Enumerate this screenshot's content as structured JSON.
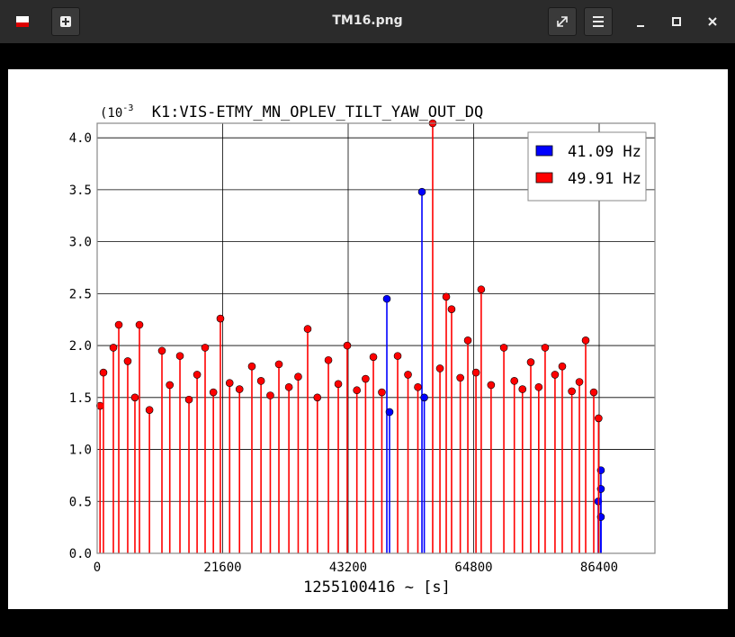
{
  "window": {
    "title": "TM16.png"
  },
  "chart_data": {
    "type": "stem",
    "title": "K1:VIS-ETMY_MN_OPLEV_TILT_YAW_OUT_DQ",
    "y_multiplier": {
      "base": "(10",
      "exponent": "-3"
    },
    "xlabel": "1255100416 ~ [s]",
    "xlim": [
      0,
      96000
    ],
    "xticks": [
      0,
      21600,
      43200,
      64800,
      86400
    ],
    "ylim": [
      0,
      4.14
    ],
    "yticks": [
      {
        "value": 0,
        "label": "0.0"
      },
      0.5,
      {
        "value": 1,
        "label": "1.0"
      },
      1.5,
      {
        "value": 2,
        "label": "2.0"
      },
      2.5,
      {
        "value": 3,
        "label": "3.0"
      },
      3.5,
      {
        "value": 4,
        "label": "4.0"
      }
    ],
    "grid": true,
    "legend": "upper right",
    "series": [
      {
        "name": "41.09 Hz",
        "color": "#0000ff",
        "x": [
          49860,
          50320,
          55900,
          56300,
          86240,
          86700,
          86700,
          86700
        ],
        "values": [
          2.45,
          1.36,
          3.48,
          1.5,
          0.5,
          0.8,
          0.62,
          0.35
        ]
      },
      {
        "name": "49.91 Hz",
        "color": "#ff0000",
        "x": [
          500,
          1080,
          2790,
          3720,
          5260,
          6500,
          7280,
          9000,
          11150,
          12500,
          14250,
          15800,
          17200,
          18580,
          20000,
          21210,
          22800,
          24500,
          26630,
          28200,
          29800,
          31280,
          33000,
          34600,
          36230,
          37900,
          39800,
          41500,
          43040,
          44700,
          46200,
          47540,
          49000,
          51720,
          53500,
          55200,
          57750,
          59000,
          60080,
          61000,
          62500,
          63800,
          65200,
          66100,
          67800,
          70000,
          71800,
          73200,
          74630,
          76000,
          77100,
          78800,
          80050,
          81700,
          83000,
          84080,
          85470,
          86300
        ],
        "values": [
          1.42,
          1.74,
          1.98,
          2.2,
          1.85,
          1.5,
          2.2,
          1.38,
          1.95,
          1.62,
          1.9,
          1.48,
          1.72,
          1.98,
          1.55,
          2.26,
          1.64,
          1.58,
          1.8,
          1.66,
          1.52,
          1.82,
          1.6,
          1.7,
          2.16,
          1.5,
          1.86,
          1.63,
          2.0,
          1.57,
          1.68,
          1.89,
          1.55,
          1.9,
          1.72,
          1.6,
          4.14,
          1.78,
          2.47,
          2.35,
          1.69,
          2.05,
          1.74,
          2.54,
          1.62,
          1.98,
          1.66,
          1.58,
          1.84,
          1.6,
          1.98,
          1.72,
          1.8,
          1.56,
          1.65,
          2.05,
          1.55,
          1.3
        ]
      }
    ]
  }
}
